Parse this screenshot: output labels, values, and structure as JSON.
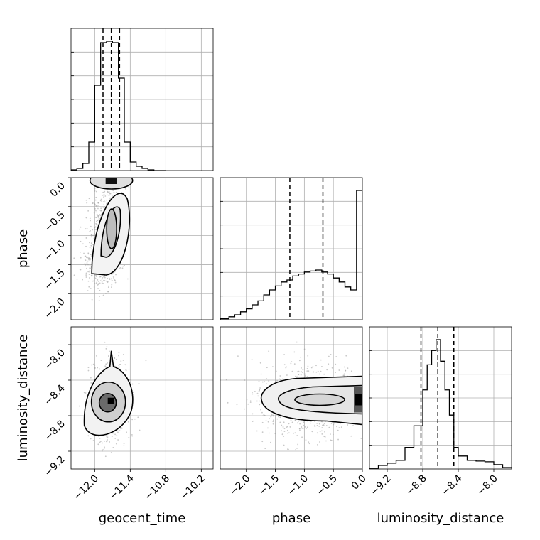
{
  "chart_data": {
    "type": "corner",
    "parameters": [
      "geocent_time",
      "phase",
      "luminosity_distance"
    ],
    "axis_labels": {
      "geocent_time": "geocent_time",
      "phase": "phase",
      "luminosity_distance": "luminosity_distance"
    },
    "ranges": {
      "geocent_time": [
        -12.4,
        -10.0
      ],
      "phase": [
        -2.45,
        0.0
      ],
      "luminosity_distance": [
        -9.4,
        -7.8
      ]
    },
    "ticks": {
      "geocent_time": [
        -12.0,
        -11.4,
        -10.8,
        -10.2
      ],
      "phase": [
        -2.0,
        -1.5,
        -1.0,
        -0.5,
        0.0
      ],
      "luminosity_distance": [
        -9.2,
        -8.8,
        -8.4,
        -8.0
      ]
    },
    "tick_labels": {
      "geocent_time": [
        "−12.0",
        "−11.4",
        "−10.8",
        "−10.2"
      ],
      "phase_x": [
        "−2.0",
        "−1.5",
        "−1.0",
        "−0.5",
        "0.0"
      ],
      "phase_y": [
        "0.0",
        "−0.5",
        "−1.0",
        "−1.5",
        "−2.0"
      ],
      "luminosity_distance_x": [
        "−9.2",
        "−8.8",
        "−8.4",
        "−8.0"
      ],
      "luminosity_distance_y": [
        "−8.0",
        "−8.4",
        "−8.8",
        "−9.2"
      ]
    },
    "quantiles": {
      "geocent_time": [
        -11.86,
        -11.72,
        -11.58
      ],
      "phase": [
        -1.25,
        -0.68,
        0.0
      ],
      "luminosity_distance": [
        -8.82,
        -8.63,
        -8.45
      ]
    },
    "histograms": {
      "geocent_time": {
        "edges": [
          -12.4,
          -12.3,
          -12.2,
          -12.1,
          -12.0,
          -11.9,
          -11.8,
          -11.7,
          -11.6,
          -11.5,
          -11.4,
          -11.3,
          -11.2,
          -11.1,
          -11.0,
          -10.9,
          -10.8
        ],
        "counts": [
          1,
          3,
          10,
          40,
          120,
          180,
          182,
          180,
          130,
          40,
          12,
          6,
          3,
          1,
          0,
          0
        ]
      },
      "phase": {
        "edges": [
          -2.45,
          -2.3,
          -2.2,
          -2.1,
          -2.0,
          -1.9,
          -1.8,
          -1.7,
          -1.6,
          -1.5,
          -1.4,
          -1.3,
          -1.2,
          -1.1,
          -1.0,
          -0.9,
          -0.8,
          -0.7,
          -0.6,
          -0.5,
          -0.4,
          -0.3,
          -0.2,
          -0.1,
          0.0
        ],
        "counts": [
          1,
          3,
          5,
          8,
          11,
          15,
          19,
          25,
          30,
          34,
          38,
          40,
          44,
          46,
          48,
          49,
          50,
          48,
          46,
          42,
          38,
          33,
          30,
          130
        ]
      },
      "luminosity_distance": {
        "edges": [
          -9.4,
          -9.3,
          -9.2,
          -9.1,
          -9.0,
          -8.9,
          -8.8,
          -8.75,
          -8.7,
          -8.65,
          -8.6,
          -8.55,
          -8.5,
          -8.45,
          -8.4,
          -8.3,
          -8.2,
          -8.1,
          -8.0,
          -7.9,
          -7.8
        ],
        "counts": [
          1,
          5,
          8,
          12,
          30,
          60,
          110,
          145,
          165,
          180,
          150,
          110,
          75,
          30,
          18,
          12,
          11,
          10,
          6,
          2
        ]
      }
    },
    "panels_2d": [
      {
        "x": "geocent_time",
        "y": "phase",
        "peak": [
          -11.72,
          -0.05
        ]
      },
      {
        "x": "geocent_time",
        "y": "luminosity_distance",
        "peak": [
          -11.72,
          -8.63
        ]
      },
      {
        "x": "phase",
        "y": "luminosity_distance",
        "peak": [
          -0.02,
          -8.62
        ]
      }
    ],
    "grid": true
  }
}
